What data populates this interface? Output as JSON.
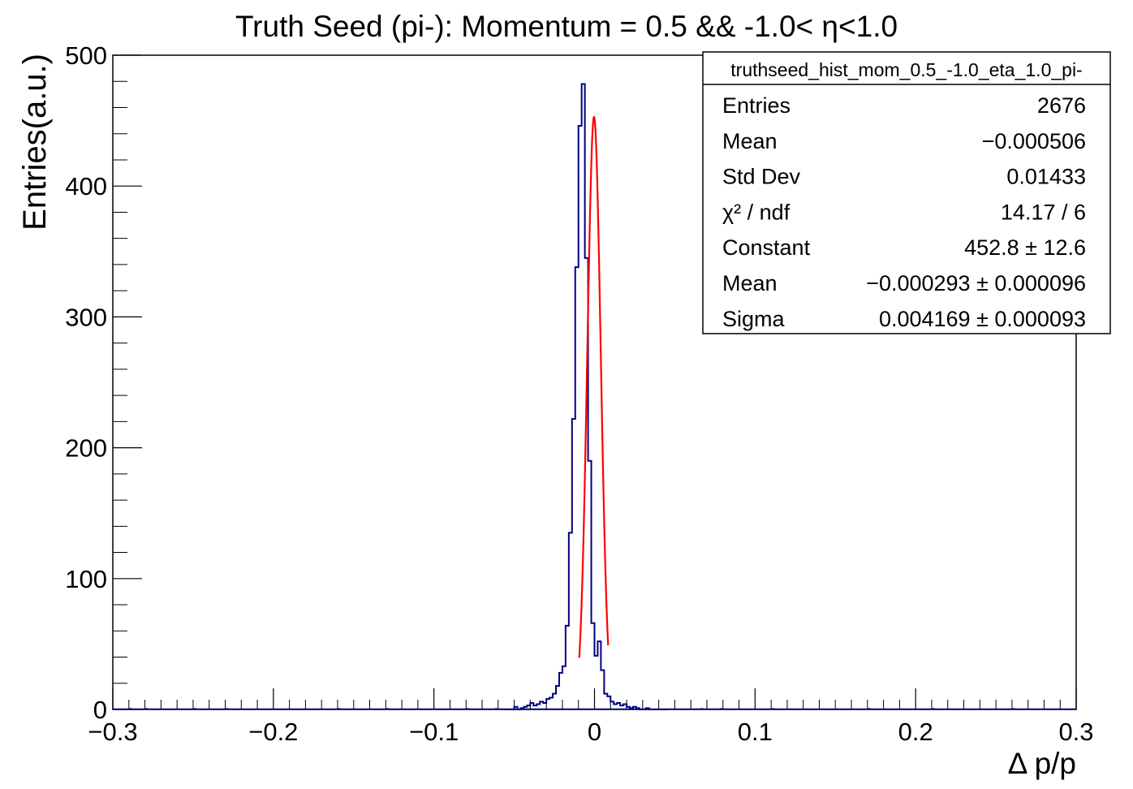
{
  "title": "Truth Seed (pi-): Momentum = 0.5 && -1.0< η<1.0",
  "chart_data": {
    "type": "histogram",
    "title": "Truth Seed (pi-): Momentum = 0.5 && -1.0< η<1.0",
    "xlabel": "Δ p/p",
    "ylabel": "Entries(a.u.)",
    "xlim": [
      -0.3,
      0.3
    ],
    "ylim": [
      0,
      500
    ],
    "x_ticks": [
      -0.3,
      -0.2,
      -0.1,
      0,
      0.1,
      0.2,
      0.3
    ],
    "x_tick_labels": [
      "−0.3",
      "−0.2",
      "−0.1",
      "0",
      "0.1",
      "0.2",
      "0.3"
    ],
    "y_ticks": [
      0,
      100,
      200,
      300,
      400,
      500
    ],
    "y_tick_labels": [
      "0",
      "100",
      "200",
      "300",
      "400",
      "500"
    ],
    "histogram": {
      "color": "#000080",
      "bin_width": 0.002,
      "bin_lows": [
        -0.056,
        -0.054,
        -0.052,
        -0.05,
        -0.048,
        -0.046,
        -0.044,
        -0.042,
        -0.04,
        -0.038,
        -0.036,
        -0.034,
        -0.032,
        -0.03,
        -0.028,
        -0.026,
        -0.024,
        -0.022,
        -0.02,
        -0.018,
        -0.016,
        -0.014,
        -0.012,
        -0.01,
        -0.008,
        -0.006,
        -0.004,
        -0.002,
        0,
        0.002,
        0.004,
        0.006,
        0.008,
        0.01,
        0.012,
        0.014,
        0.016,
        0.018,
        0.02,
        0.022,
        0.024,
        0.026,
        0.028,
        0.03,
        0.032,
        0.034,
        0.036,
        0.038,
        0.04,
        0.042,
        0.044
      ],
      "counts": [
        0,
        0,
        0,
        2,
        0,
        1,
        2,
        3,
        5,
        3,
        4,
        6,
        5,
        8,
        9,
        12,
        18,
        28,
        33,
        64,
        135,
        222,
        338,
        446,
        478,
        345,
        190,
        66,
        41,
        52,
        30,
        12,
        10,
        6,
        4,
        5,
        3,
        4,
        2,
        1,
        2,
        1,
        0,
        0,
        1,
        0,
        0,
        0,
        0,
        0,
        0
      ]
    },
    "sparse_entries": [
      {
        "x": -0.29,
        "count": 1
      },
      {
        "x": -0.28,
        "count": 1
      },
      {
        "x": -0.25,
        "count": 1
      },
      {
        "x": -0.23,
        "count": 1
      },
      {
        "x": -0.16,
        "count": 1
      },
      {
        "x": -0.13,
        "count": 1
      },
      {
        "x": -0.08,
        "count": 1
      },
      {
        "x": -0.062,
        "count": 1
      },
      {
        "x": 0.066,
        "count": 1
      },
      {
        "x": 0.078,
        "count": 1
      },
      {
        "x": 0.11,
        "count": 1
      },
      {
        "x": 0.17,
        "count": 1
      },
      {
        "x": 0.21,
        "count": 1
      },
      {
        "x": 0.26,
        "count": 1
      }
    ],
    "fit": {
      "function": "gaus",
      "color": "#ff0000",
      "constant": 452.8,
      "mean": -0.000293,
      "sigma": 0.004169,
      "range": [
        -0.0095,
        0.0085
      ]
    }
  },
  "stats_box": {
    "name": "truthseed_hist_mom_0.5_-1.0_eta_1.0_pi-",
    "rows": [
      {
        "label": "Entries",
        "value": "2676"
      },
      {
        "label": "Mean",
        "value": "−0.000506"
      },
      {
        "label": "Std Dev",
        "value": "0.01433"
      },
      {
        "label": "χ² / ndf",
        "value": "14.17 / 6"
      },
      {
        "label": "Constant",
        "value": "452.8  ± 12.6"
      },
      {
        "label": "Mean",
        "value": "−0.000293 ± 0.000096"
      },
      {
        "label": "Sigma",
        "value": "0.004169  ± 0.000093"
      }
    ]
  }
}
